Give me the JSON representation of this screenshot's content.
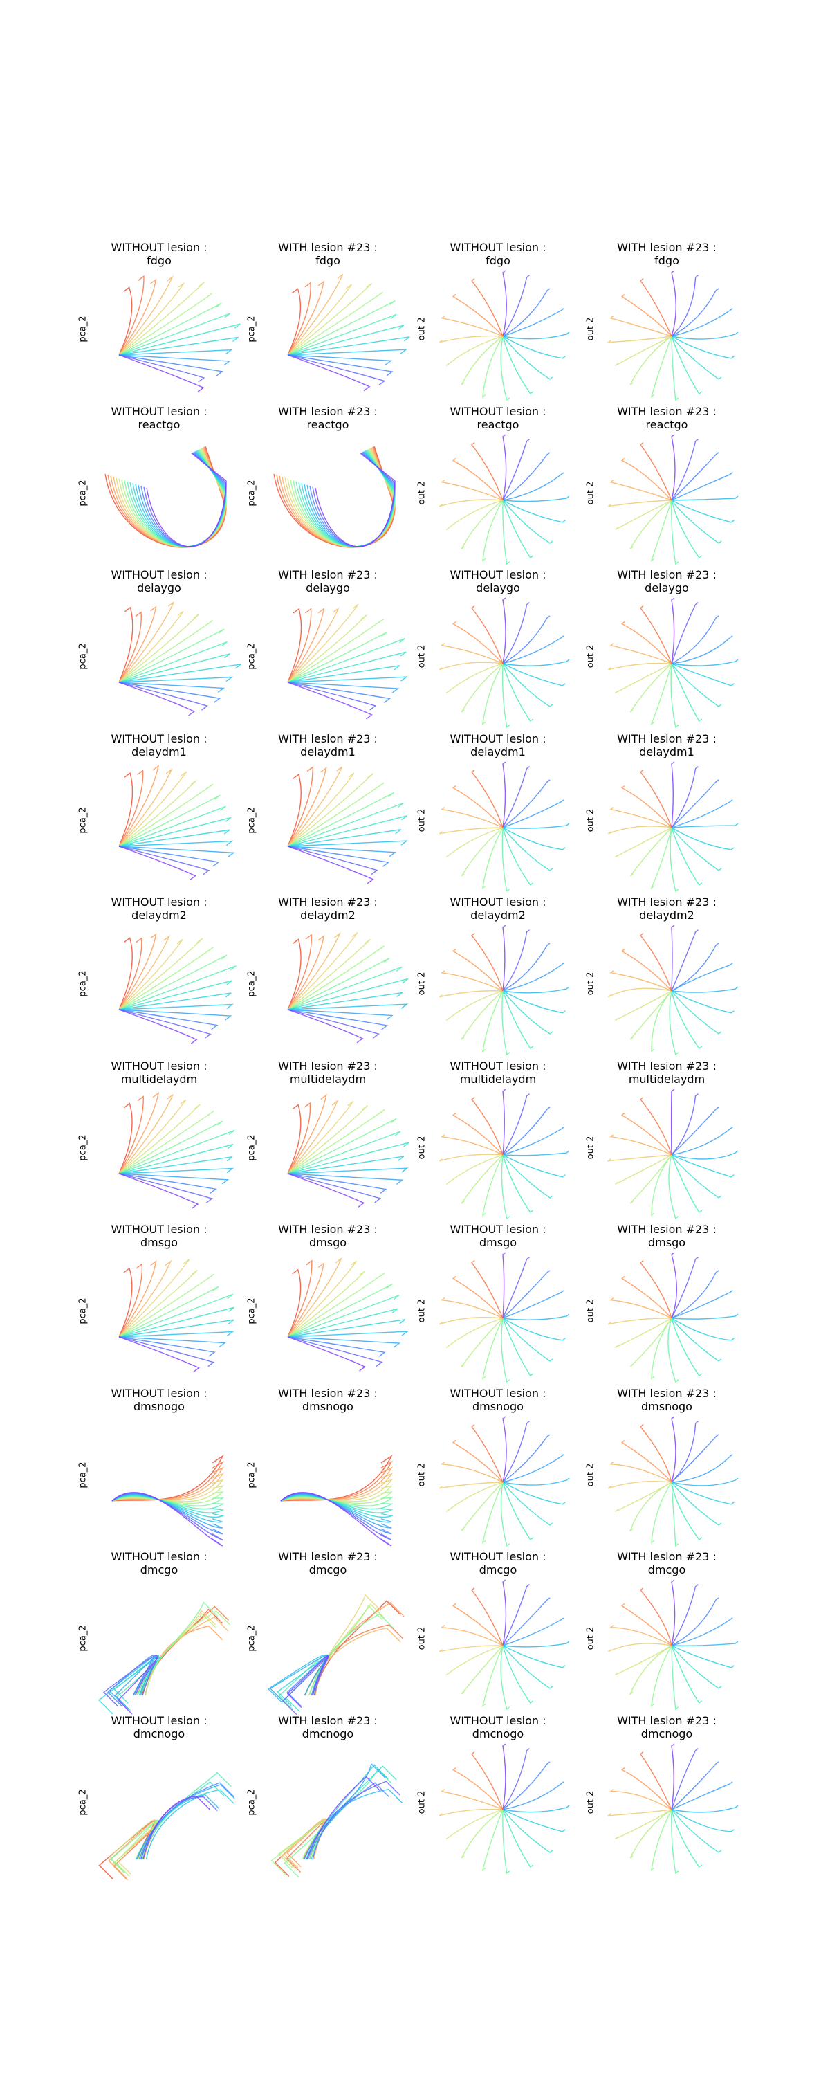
{
  "chart_data": {
    "type": "line",
    "layout": "grid",
    "grid": false,
    "axes_visible": false,
    "colormap": "rainbow",
    "tasks": [
      "fdgo",
      "reactgo",
      "delaygo",
      "delaydm1",
      "delaydm2",
      "multidelaydm",
      "dmsgo",
      "dmsnogo",
      "dmcgo",
      "dmcnogo"
    ],
    "columns": [
      {
        "title_prefix": "WITHOUT lesion :",
        "ylabel": "pca_2",
        "space": "pca"
      },
      {
        "title_prefix": "WITH lesion #23 :",
        "ylabel": "pca_2",
        "space": "pca"
      },
      {
        "title_prefix": "WITHOUT lesion :",
        "ylabel": "out 2",
        "space": "output"
      },
      {
        "title_prefix": "WITH lesion #23 :",
        "ylabel": "out 2",
        "space": "output"
      }
    ],
    "trajectories_per_panel": 16
  }
}
